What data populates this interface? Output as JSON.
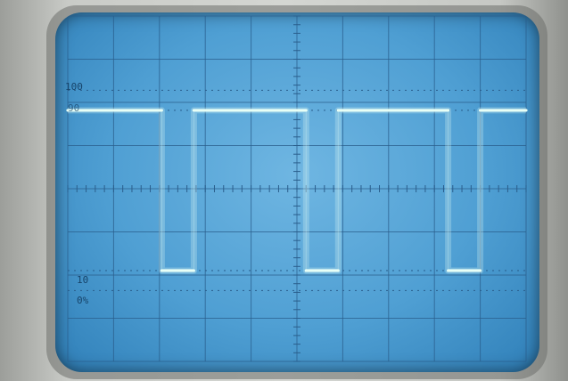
{
  "screen": {
    "labels": {
      "upper": "100",
      "upper_partial": "90",
      "lower": "10",
      "zero": "0%"
    },
    "colors": {
      "phosphor": "#e8fff6",
      "grid": "#2a5e8c",
      "screen": "#5aa7d8"
    }
  },
  "chart_data": {
    "type": "line",
    "title": "",
    "xlabel": "",
    "ylabel": "",
    "grid": true,
    "series": [
      {
        "points": [
          [
            0.0,
            90
          ],
          [
            2.05,
            90
          ],
          [
            2.05,
            10
          ],
          [
            2.75,
            10
          ],
          [
            2.75,
            90
          ],
          [
            5.2,
            90
          ],
          [
            5.2,
            10
          ],
          [
            5.9,
            10
          ],
          [
            5.9,
            90
          ],
          [
            8.3,
            90
          ],
          [
            8.3,
            10
          ],
          [
            9.0,
            10
          ],
          [
            9.0,
            90
          ],
          [
            10.0,
            90
          ]
        ]
      }
    ]
  }
}
